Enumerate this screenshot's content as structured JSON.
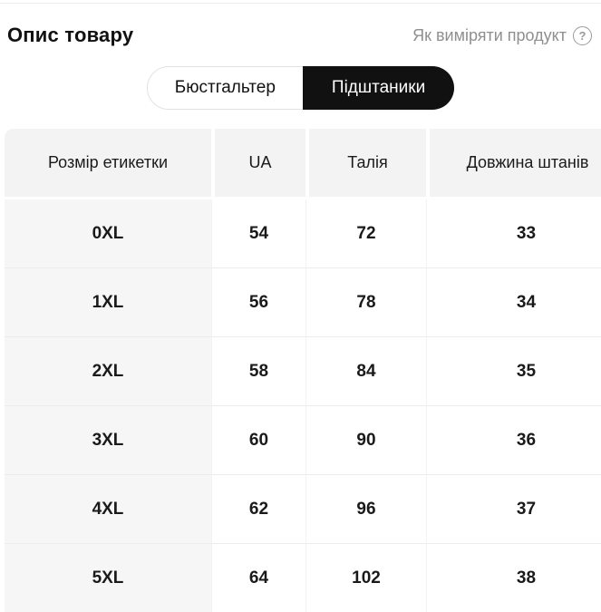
{
  "header": {
    "title": "Опис товару",
    "measure_link_label": "Як виміряти продукт",
    "help_icon_glyph": "?"
  },
  "tabs": [
    {
      "label": "Бюстгальтер",
      "active": false
    },
    {
      "label": "Підштаники",
      "active": true
    }
  ],
  "size_table": {
    "columns": [
      "Розмір етикетки",
      "UA",
      "Талія",
      "Довжина штанів"
    ],
    "rows": [
      [
        "0XL",
        "54",
        "72",
        "33"
      ],
      [
        "1XL",
        "56",
        "78",
        "34"
      ],
      [
        "2XL",
        "58",
        "84",
        "35"
      ],
      [
        "3XL",
        "60",
        "90",
        "36"
      ],
      [
        "4XL",
        "62",
        "96",
        "37"
      ],
      [
        "5XL",
        "64",
        "102",
        "38"
      ]
    ]
  },
  "colors": {
    "active_tab_bg": "#111111",
    "active_tab_text": "#ffffff",
    "tab_border": "#e2e2e2",
    "table_header_bg": "#f3f3f3",
    "table_first_col_bg": "#f6f6f6",
    "row_divider": "#ececec",
    "muted_text": "#8f8f8f",
    "text": "#111111"
  }
}
